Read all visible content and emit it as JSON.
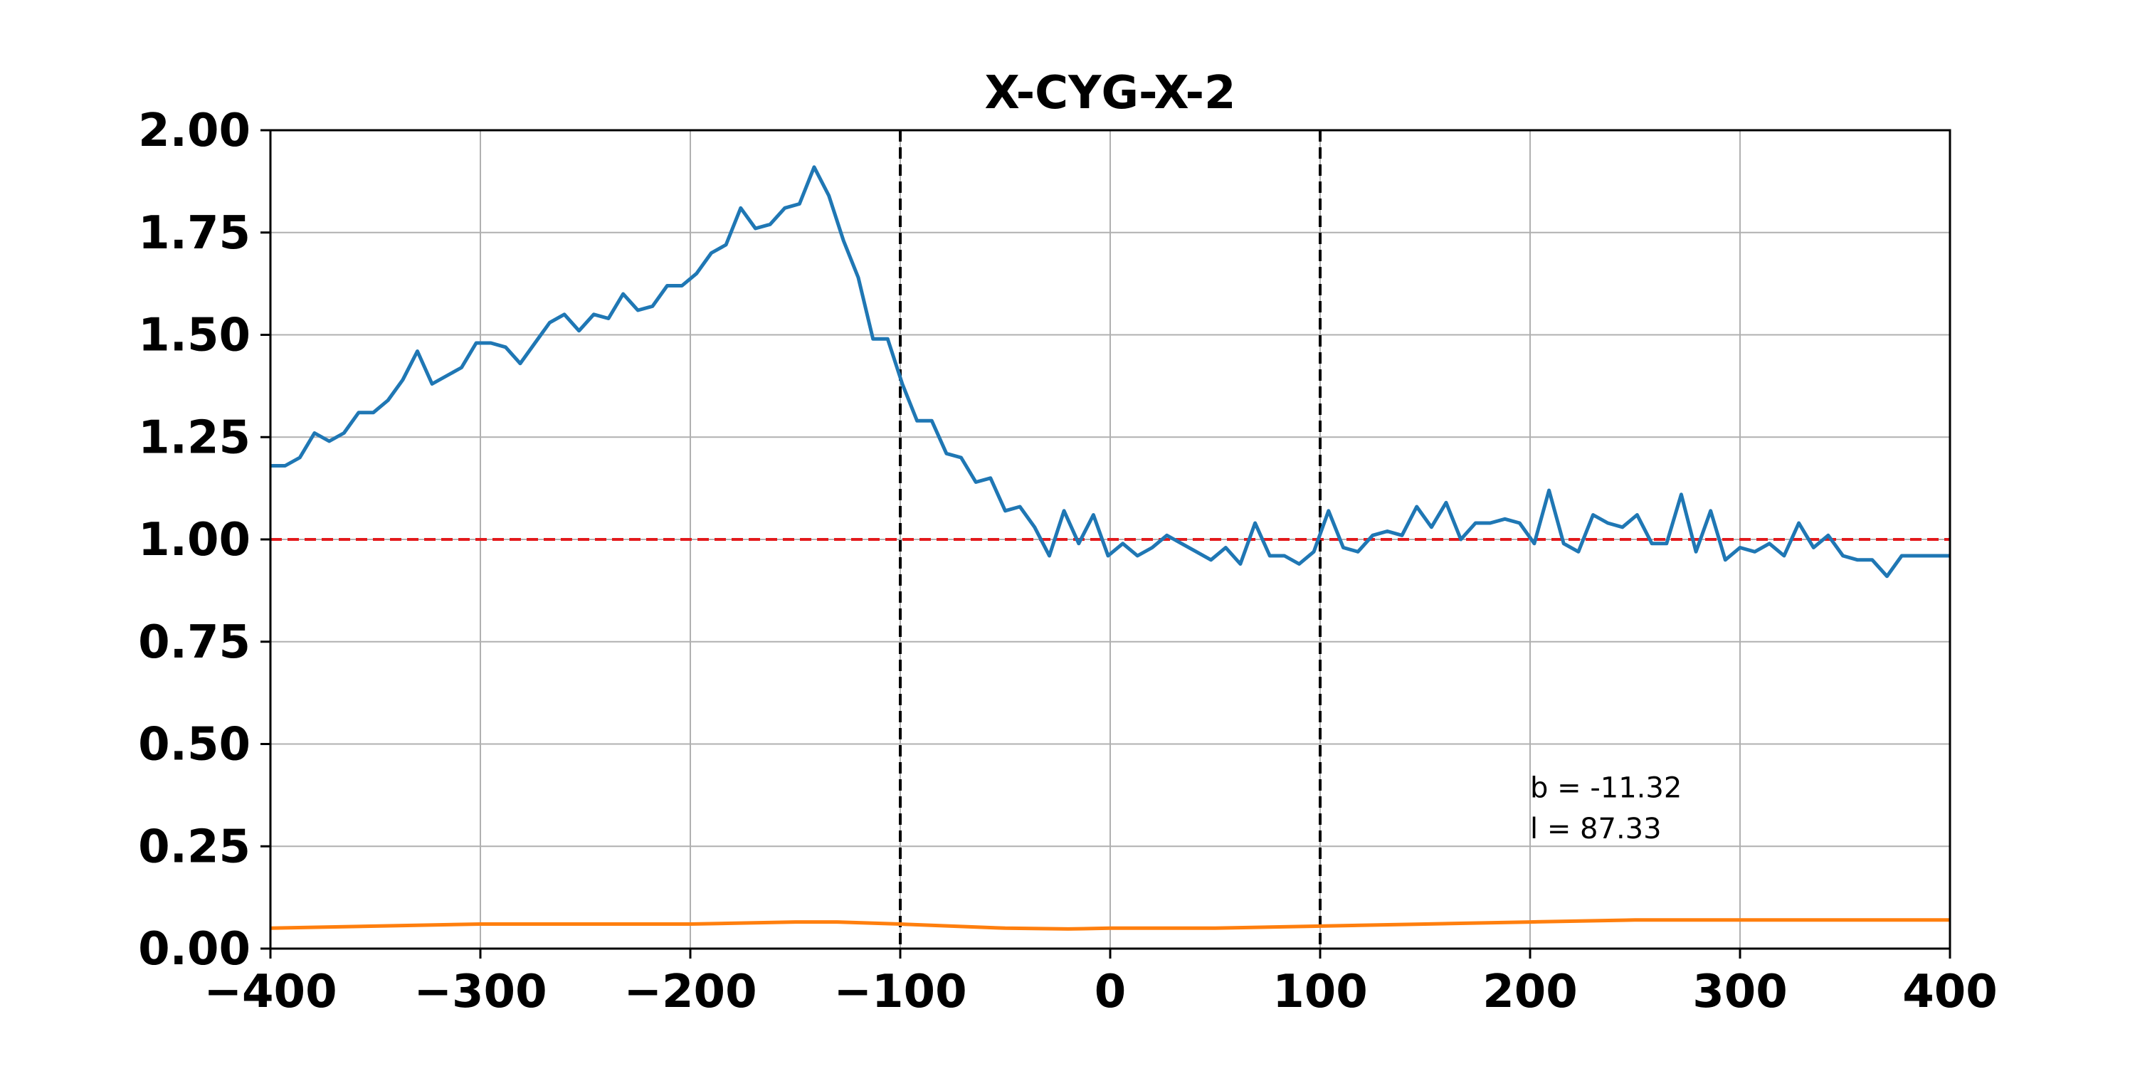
{
  "chart_data": {
    "type": "line",
    "title": "X-CYG-X-2",
    "xlabel": "",
    "ylabel": "",
    "xlim": [
      -400,
      400
    ],
    "ylim": [
      0,
      2
    ],
    "x_ticks": [
      -400,
      -300,
      -200,
      -100,
      0,
      100,
      200,
      300,
      400
    ],
    "x_tick_labels": [
      "−400",
      "−300",
      "−200",
      "−100",
      "0",
      "100",
      "200",
      "300",
      "400"
    ],
    "y_ticks": [
      0,
      0.25,
      0.5,
      0.75,
      1.0,
      1.25,
      1.5,
      1.75,
      2.0
    ],
    "y_tick_labels": [
      "0.00",
      "0.25",
      "0.50",
      "0.75",
      "1.00",
      "1.25",
      "1.50",
      "1.75",
      "2.00"
    ],
    "grid": true,
    "colors": {
      "series_1": "#1f77b4",
      "series_2": "#ff7f0e",
      "reference_line": "#e31a1c",
      "markers": "#000000",
      "grid": "#b0b0b0"
    },
    "series": [
      {
        "x": [
          -400,
          -393,
          -386,
          -379,
          -372,
          -365,
          -358,
          -351,
          -344,
          -337,
          -330,
          -323,
          -316,
          -309,
          -302,
          -295,
          -288,
          -281,
          -274,
          -267,
          -260,
          -253,
          -246,
          -239,
          -232,
          -225,
          -218,
          -211,
          -204,
          -197,
          -190,
          -183,
          -176,
          -169,
          -162,
          -155,
          -148,
          -141,
          -134,
          -127,
          -120,
          -113,
          -106,
          -99,
          -92,
          -85,
          -78,
          -71,
          -64,
          -57,
          -50,
          -43,
          -36,
          -29,
          -22,
          -15,
          -8,
          -1,
          6,
          13,
          20,
          27,
          34,
          41,
          48,
          55,
          62,
          69,
          76,
          83,
          90,
          97,
          104,
          111,
          118,
          125,
          132,
          139,
          146,
          153,
          160,
          167,
          174,
          181,
          188,
          195,
          202,
          209,
          216,
          223,
          230,
          237,
          244,
          251,
          258,
          265,
          272,
          279,
          286,
          293,
          300,
          307,
          314,
          321,
          328,
          335,
          342,
          349,
          356,
          363,
          370,
          377,
          384,
          391,
          398,
          400
        ],
        "values": [
          1.18,
          1.18,
          1.2,
          1.26,
          1.24,
          1.26,
          1.31,
          1.31,
          1.34,
          1.39,
          1.46,
          1.38,
          1.4,
          1.42,
          1.48,
          1.48,
          1.47,
          1.43,
          1.48,
          1.53,
          1.55,
          1.51,
          1.55,
          1.54,
          1.6,
          1.56,
          1.57,
          1.62,
          1.62,
          1.65,
          1.7,
          1.72,
          1.81,
          1.76,
          1.77,
          1.81,
          1.82,
          1.91,
          1.84,
          1.73,
          1.64,
          1.49,
          1.49,
          1.38,
          1.29,
          1.29,
          1.21,
          1.2,
          1.14,
          1.15,
          1.07,
          1.08,
          1.03,
          0.96,
          1.07,
          0.99,
          1.06,
          0.96,
          0.99,
          0.96,
          0.98,
          1.01,
          0.99,
          0.97,
          0.95,
          0.98,
          0.94,
          1.04,
          0.96,
          0.96,
          0.94,
          0.97,
          1.07,
          0.98,
          0.97,
          1.01,
          1.02,
          1.01,
          1.08,
          1.03,
          1.09,
          1.0,
          1.04,
          1.04,
          1.05,
          1.04,
          0.99,
          1.12,
          0.99,
          0.97,
          1.06,
          1.04,
          1.03,
          1.06,
          0.99,
          0.99,
          1.11,
          0.97,
          1.07,
          0.95,
          0.98,
          0.97,
          0.99,
          0.96,
          1.04,
          0.98,
          1.01,
          0.96,
          0.95,
          0.95,
          0.91,
          0.96,
          0.96,
          0.96,
          0.96,
          0.96
        ]
      },
      {
        "x": [
          -400,
          -350,
          -300,
          -250,
          -200,
          -150,
          -130,
          -100,
          -50,
          -20,
          0,
          50,
          100,
          150,
          200,
          250,
          300,
          350,
          400
        ],
        "values": [
          0.05,
          0.055,
          0.06,
          0.06,
          0.06,
          0.065,
          0.065,
          0.06,
          0.05,
          0.048,
          0.05,
          0.05,
          0.055,
          0.06,
          0.065,
          0.07,
          0.07,
          0.07,
          0.07
        ]
      }
    ],
    "reference_lines": [
      {
        "orientation": "horizontal",
        "value": 1.0,
        "style": "dashed",
        "color": "#e31a1c"
      },
      {
        "orientation": "vertical",
        "value": -100,
        "style": "dashed",
        "color": "#000000"
      },
      {
        "orientation": "vertical",
        "value": 100,
        "style": "dashed",
        "color": "#000000"
      }
    ],
    "annotations": [
      {
        "text": "b = -11.32",
        "x": 200,
        "y": 0.37
      },
      {
        "text": "l = 87.33",
        "x": 200,
        "y": 0.27
      }
    ]
  }
}
